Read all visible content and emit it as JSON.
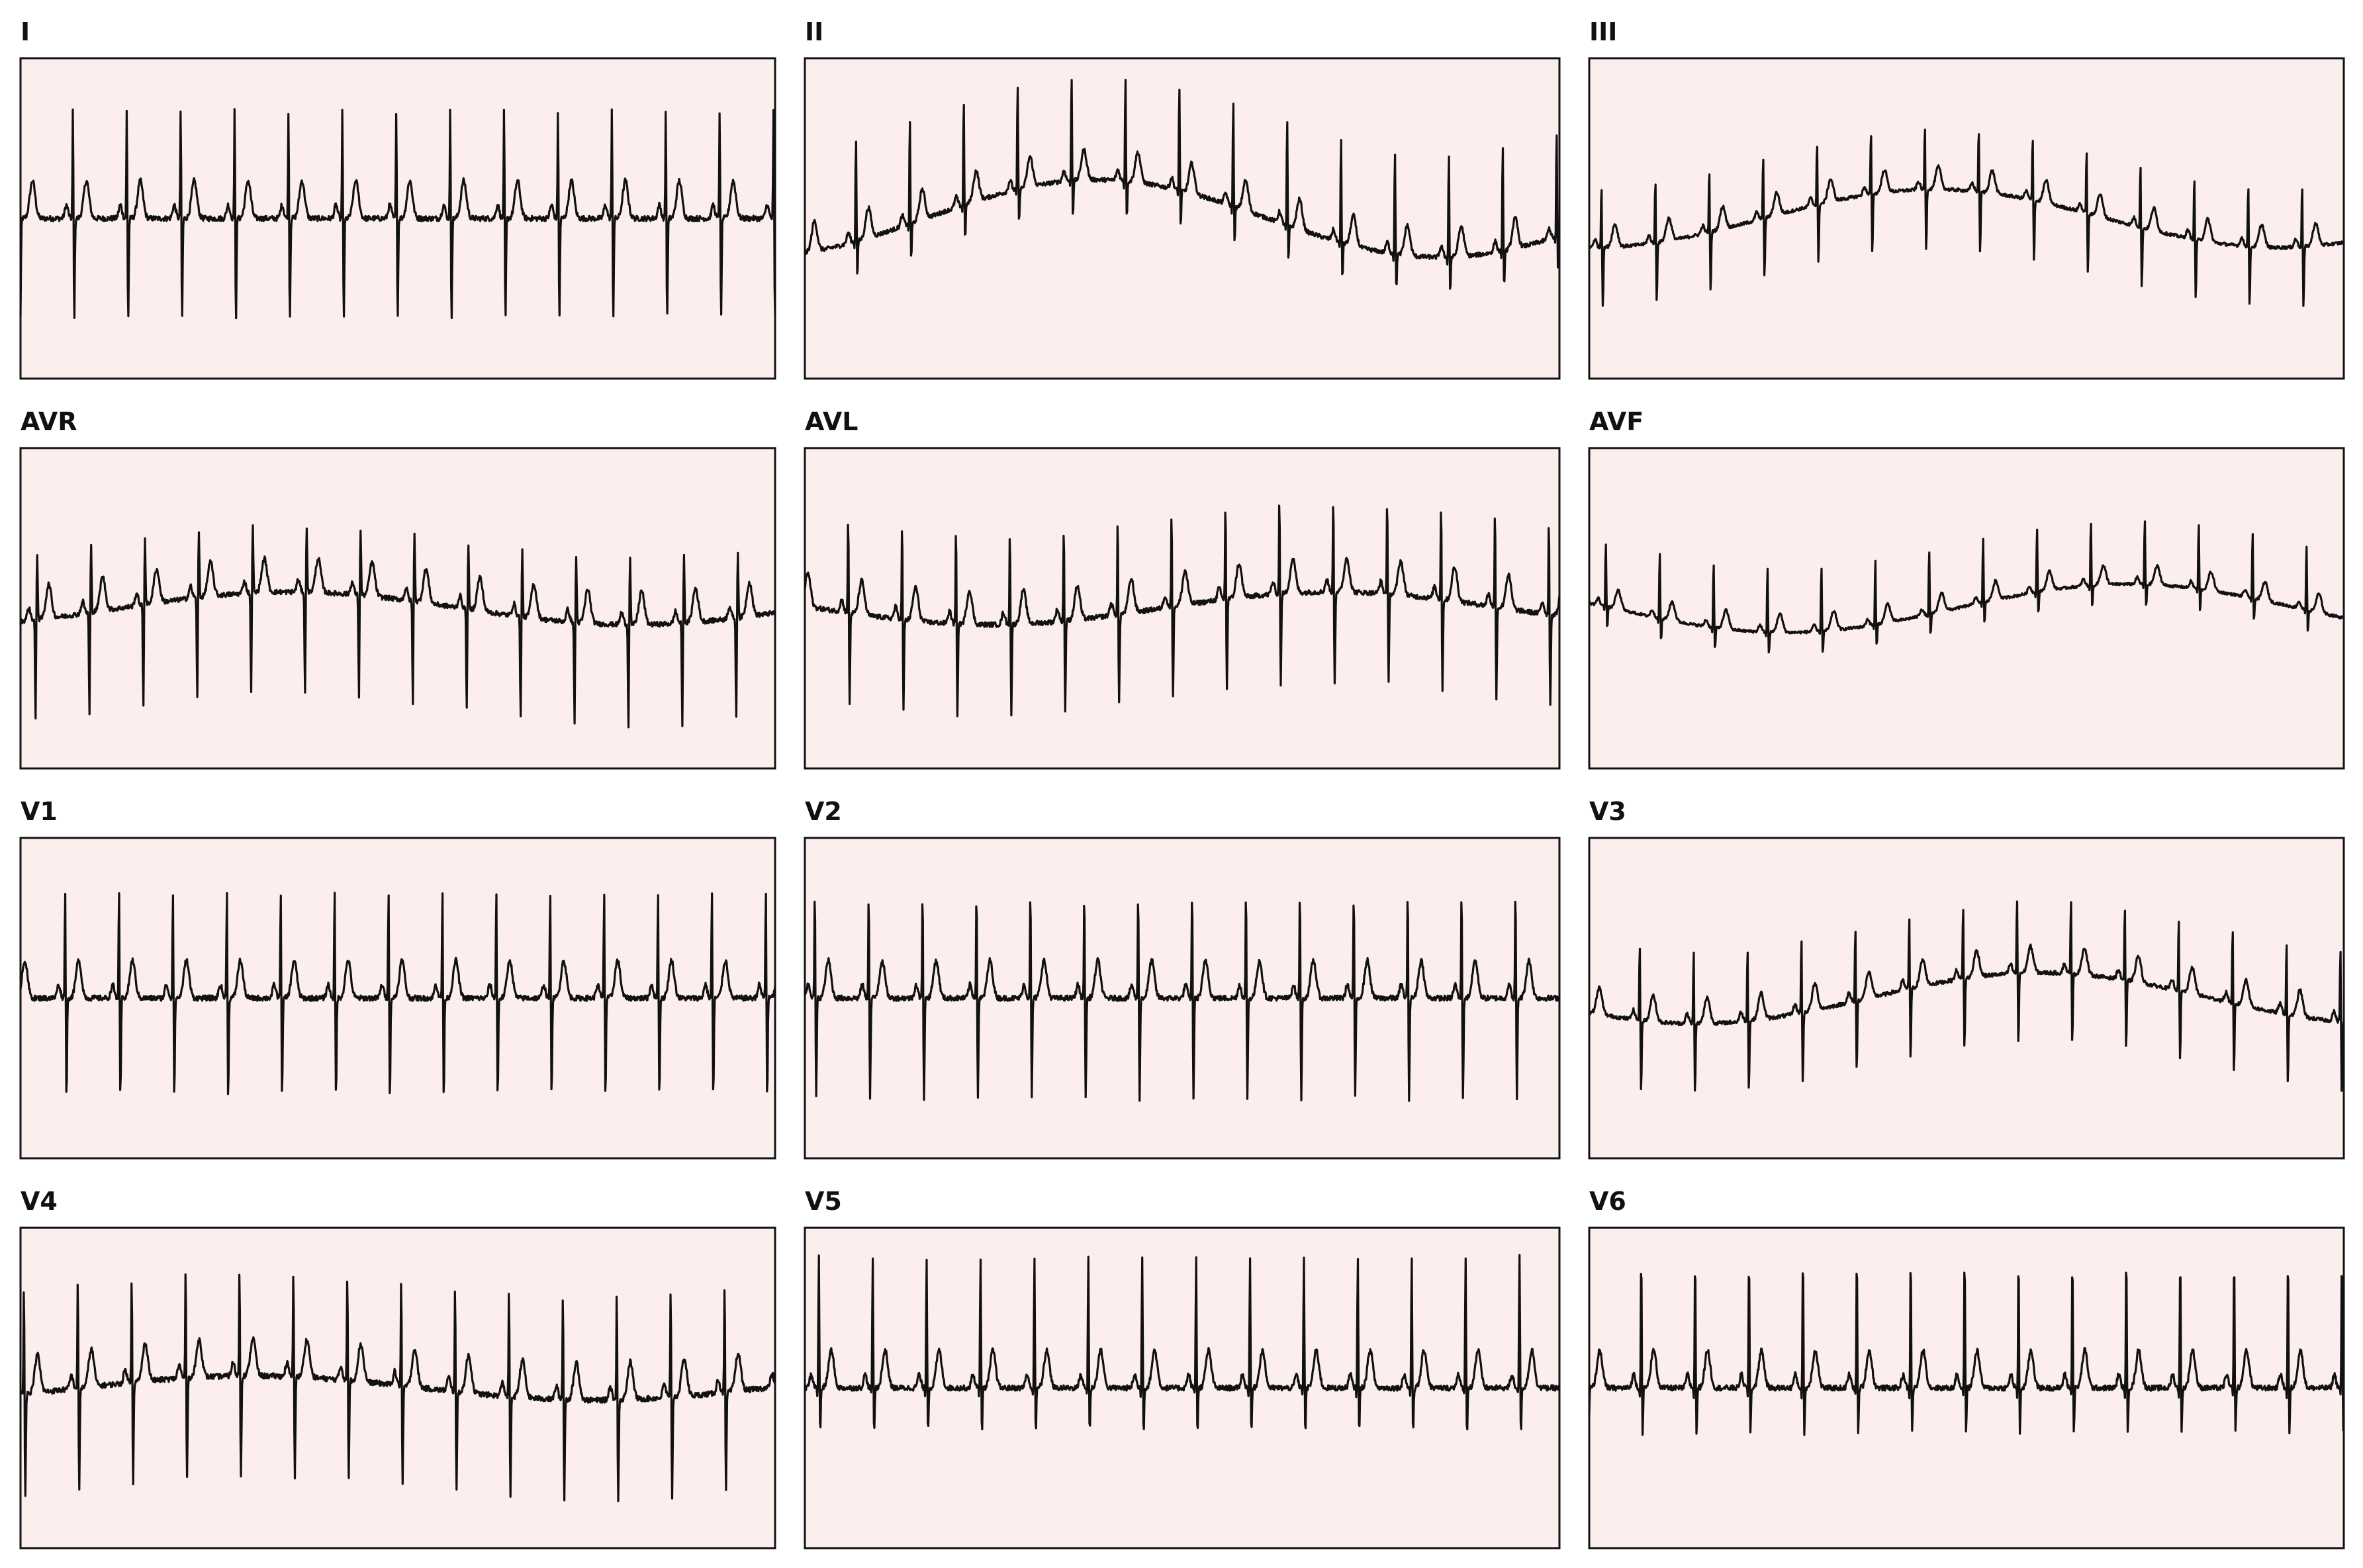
{
  "chart_data": {
    "type": "line",
    "title": "",
    "background_color": "#fdeeee",
    "trace_color": "#111111",
    "grid": false,
    "axes_ticks": false,
    "leads": [
      {
        "name": "I",
        "beats": 14,
        "beat_shape": "rs",
        "baseline_wander": 0.0,
        "amp": 1.0
      },
      {
        "name": "II",
        "beats": 14,
        "beat_shape": "r",
        "baseline_wander": 0.8,
        "amp": 0.8
      },
      {
        "name": "III",
        "beats": 14,
        "beat_shape": "rs",
        "baseline_wander": 0.8,
        "amp": 0.6
      },
      {
        "name": "AVR",
        "beats": 14,
        "beat_shape": "qr",
        "baseline_wander": 0.3,
        "amp": 0.9
      },
      {
        "name": "AVL",
        "beats": 14,
        "beat_shape": "rs",
        "baseline_wander": 0.3,
        "amp": 0.9
      },
      {
        "name": "AVF",
        "beats": 14,
        "beat_shape": "r",
        "baseline_wander": 0.8,
        "amp": 0.5
      },
      {
        "name": "V1",
        "beats": 14,
        "beat_shape": "rs",
        "baseline_wander": 0.0,
        "amp": 1.0
      },
      {
        "name": "V2",
        "beats": 14,
        "beat_shape": "rs",
        "baseline_wander": 0.0,
        "amp": 1.0
      },
      {
        "name": "V3",
        "beats": 14,
        "beat_shape": "rs",
        "baseline_wander": 0.6,
        "amp": 0.7
      },
      {
        "name": "V4",
        "beats": 14,
        "beat_shape": "rs",
        "baseline_wander": 0.2,
        "amp": 1.0
      },
      {
        "name": "V5",
        "beats": 14,
        "beat_shape": "r",
        "baseline_wander": 0.0,
        "amp": 1.0
      },
      {
        "name": "V6",
        "beats": 14,
        "beat_shape": "r",
        "baseline_wander": 0.0,
        "amp": 1.0
      }
    ]
  }
}
